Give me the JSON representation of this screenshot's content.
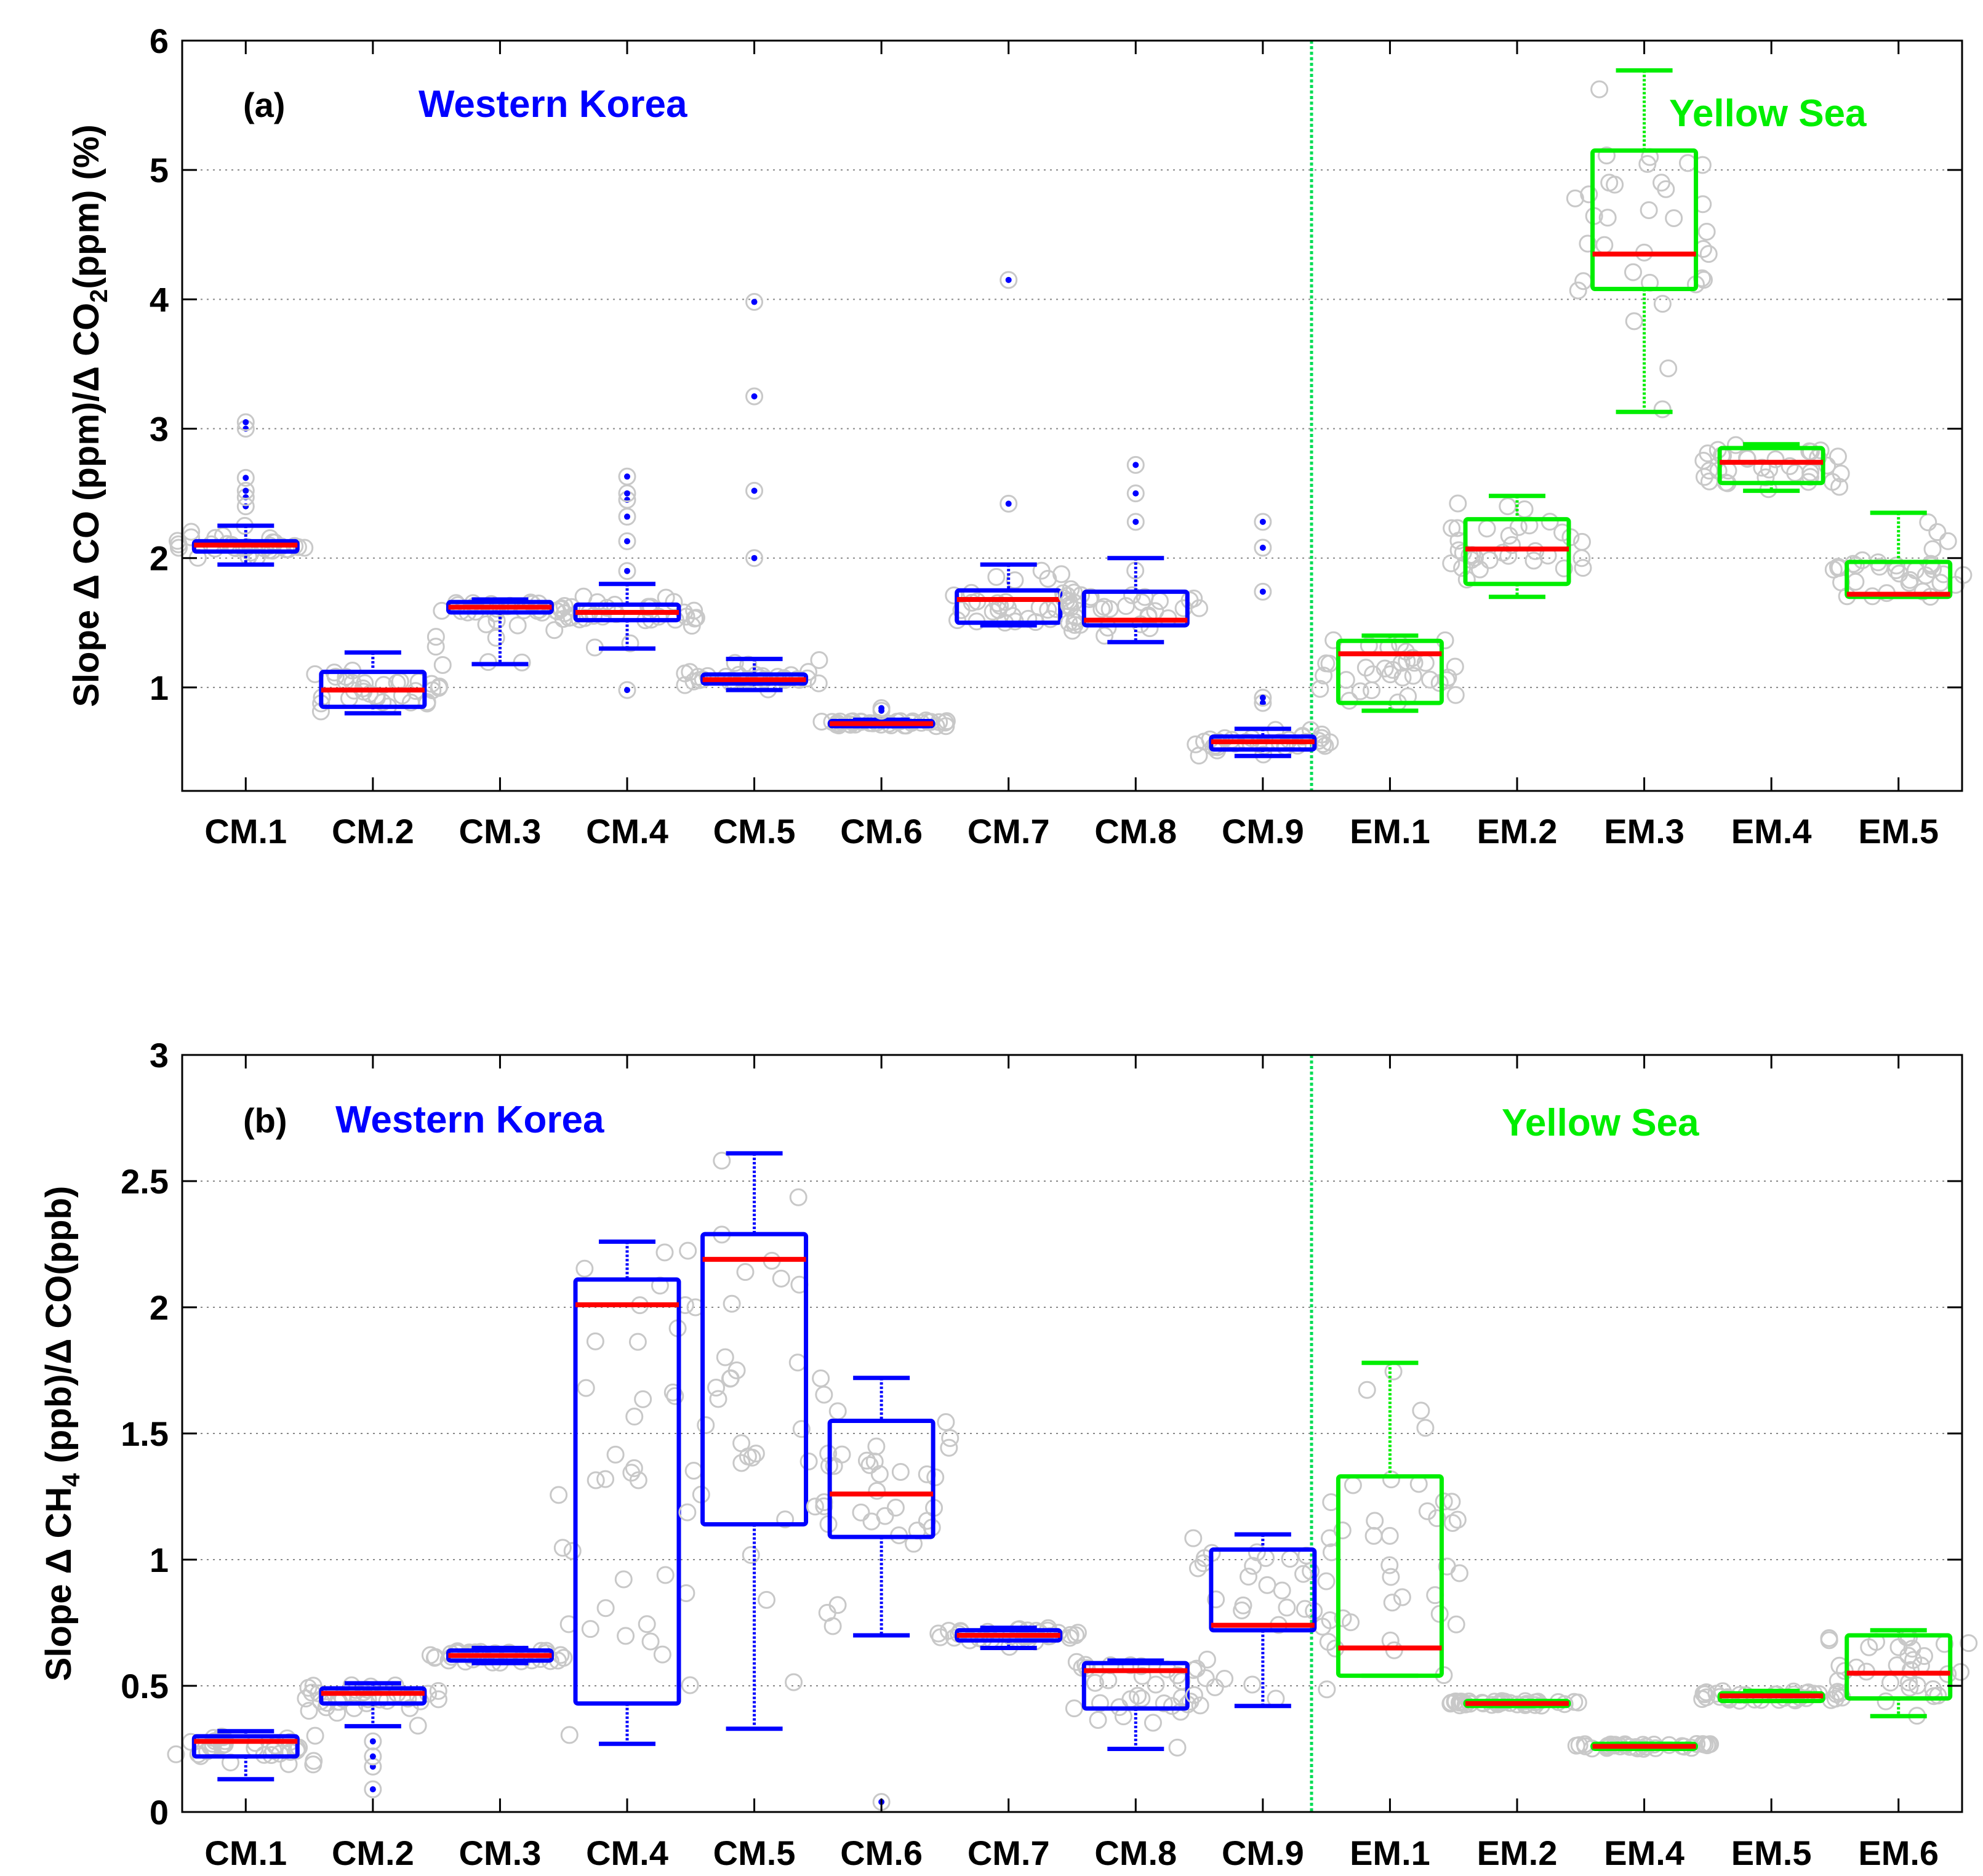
{
  "colors": {
    "western": "#0000ff",
    "yellow_sea": "#00ee00",
    "median": "#ff0000",
    "points": "#c8c8c8",
    "grid": "#888888",
    "divider": "#00dd55"
  },
  "chart_data": [
    {
      "type": "box",
      "panel_label": "(a)",
      "ylabel": {
        "pre": "Slope  Δ CO (ppm)/Δ CO",
        "sub": "2",
        "post": "(ppm) (%)"
      },
      "ylim": [
        0.2,
        6
      ],
      "yticks": [
        1,
        2,
        3,
        4,
        5,
        6
      ],
      "region_labels": {
        "left": "Western Korea",
        "right": "Yellow Sea"
      },
      "categories": [
        "CM.1",
        "CM.2",
        "CM.3",
        "CM.4",
        "CM.5",
        "CM.6",
        "CM.7",
        "CM.8",
        "CM.9",
        "EM.1",
        "EM.2",
        "EM.3",
        "EM.4",
        "EM.5"
      ],
      "groups": [
        "western",
        "western",
        "western",
        "western",
        "western",
        "western",
        "western",
        "western",
        "western",
        "yellow_sea",
        "yellow_sea",
        "yellow_sea",
        "yellow_sea",
        "yellow_sea"
      ],
      "q1": [
        2.05,
        0.85,
        1.58,
        1.52,
        1.03,
        0.7,
        1.5,
        1.48,
        0.52,
        0.88,
        1.8,
        4.08,
        2.58,
        1.7
      ],
      "median": [
        2.1,
        0.98,
        1.62,
        1.58,
        1.06,
        0.72,
        1.68,
        1.52,
        0.58,
        1.26,
        2.07,
        4.35,
        2.74,
        1.72
      ],
      "q3": [
        2.13,
        1.12,
        1.66,
        1.64,
        1.1,
        0.74,
        1.75,
        1.74,
        0.62,
        1.36,
        2.3,
        5.15,
        2.85,
        1.97
      ],
      "whisker_low": [
        1.95,
        0.8,
        1.18,
        1.3,
        0.98,
        0.7,
        1.48,
        1.35,
        0.47,
        0.82,
        1.7,
        3.13,
        2.52,
        1.7
      ],
      "whisker_high": [
        2.25,
        1.27,
        1.68,
        1.8,
        1.22,
        0.75,
        1.95,
        2.0,
        0.68,
        1.4,
        2.48,
        5.77,
        2.88,
        2.35
      ],
      "outliers": [
        [
          2.4,
          2.47,
          2.52,
          2.62,
          3.0,
          3.05
        ],
        [],
        [],
        [
          0.98,
          1.9,
          2.13,
          2.32,
          2.45,
          2.5,
          2.63
        ],
        [
          2.0,
          2.52,
          3.25,
          3.98
        ],
        [
          0.82,
          0.84
        ],
        [
          2.42,
          4.15
        ],
        [
          2.28,
          2.5,
          2.72
        ],
        [
          0.88,
          0.92,
          1.74,
          2.08,
          2.28
        ],
        [],
        [],
        [],
        [],
        []
      ]
    },
    {
      "type": "box",
      "panel_label": "(b)",
      "ylabel": {
        "pre": "Slope  Δ CH",
        "sub": "4",
        "post": " (ppb)/Δ CO(ppb)"
      },
      "ylim": [
        0,
        3
      ],
      "yticks": [
        0,
        0.5,
        1,
        1.5,
        2,
        2.5,
        3
      ],
      "region_labels": {
        "left": "Western Korea",
        "right": "Yellow Sea"
      },
      "categories": [
        "CM.1",
        "CM.2",
        "CM.3",
        "CM.4",
        "CM.5",
        "CM.6",
        "CM.7",
        "CM.8",
        "CM.9",
        "EM.1",
        "EM.2",
        "EM.4",
        "EM.5",
        "EM.6"
      ],
      "groups": [
        "western",
        "western",
        "western",
        "western",
        "western",
        "western",
        "western",
        "western",
        "western",
        "yellow_sea",
        "yellow_sea",
        "yellow_sea",
        "yellow_sea",
        "yellow_sea"
      ],
      "q1": [
        0.22,
        0.43,
        0.6,
        0.43,
        1.14,
        1.09,
        0.68,
        0.41,
        0.72,
        0.54,
        0.42,
        0.25,
        0.44,
        0.45
      ],
      "median": [
        0.28,
        0.47,
        0.62,
        2.01,
        2.19,
        1.26,
        0.7,
        0.56,
        0.74,
        0.65,
        0.43,
        0.26,
        0.46,
        0.55
      ],
      "q3": [
        0.3,
        0.49,
        0.64,
        2.11,
        2.29,
        1.55,
        0.72,
        0.59,
        1.04,
        1.33,
        0.44,
        0.27,
        0.47,
        0.7
      ],
      "whisker_low": [
        0.13,
        0.34,
        0.59,
        0.27,
        0.33,
        0.7,
        0.65,
        0.25,
        0.42,
        0.54,
        0.42,
        0.25,
        0.44,
        0.38
      ],
      "whisker_high": [
        0.32,
        0.51,
        0.65,
        2.26,
        2.61,
        1.72,
        0.73,
        0.6,
        1.1,
        1.78,
        0.44,
        0.27,
        0.48,
        0.72
      ],
      "outliers": [
        [],
        [
          0.09,
          0.18,
          0.22,
          0.28
        ],
        [],
        [],
        [],
        [
          0.04
        ],
        [],
        [],
        [],
        [],
        [],
        [],
        [],
        []
      ]
    }
  ]
}
